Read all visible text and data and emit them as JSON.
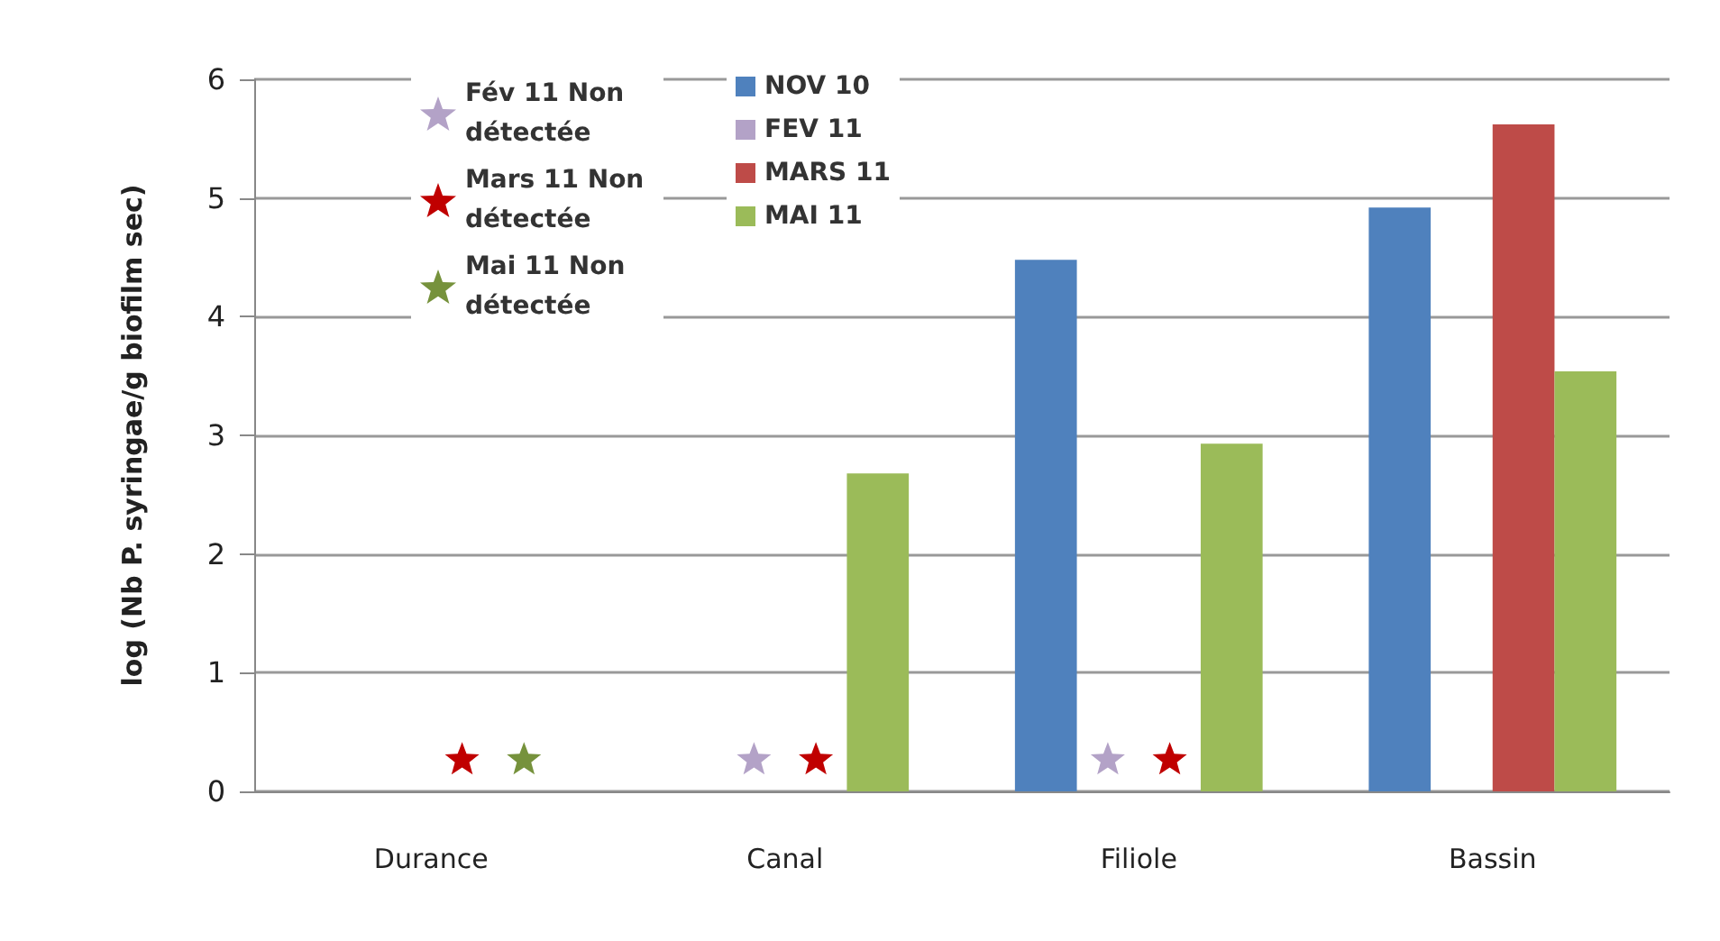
{
  "chart_data": {
    "type": "bar",
    "ylabel": "log (Nb P. syringae/g biofilm sec)",
    "categories": [
      "Durance",
      "Canal",
      "Filiole",
      "Bassin"
    ],
    "series": [
      {
        "name": "NOV 10",
        "color": "#4f81bd",
        "values": [
          null,
          null,
          4.48,
          4.92
        ]
      },
      {
        "name": "FEV 11",
        "color": "#b3a2c7",
        "values": [
          null,
          null,
          null,
          null
        ]
      },
      {
        "name": "MARS 11",
        "color": "#be4b48",
        "values": [
          null,
          null,
          null,
          5.62
        ]
      },
      {
        "name": "MAI 11",
        "color": "#9bbb59",
        "values": [
          null,
          2.68,
          2.93,
          3.54
        ]
      },
      {
        "name": "Fév 11 Non détectée",
        "type": "scatter",
        "color": "#b3a2c7",
        "x": [
          "Canal",
          "Filiole"
        ],
        "values": [
          0.28,
          0.28
        ]
      },
      {
        "name": "Mars 11 Non détectée",
        "type": "scatter",
        "color": "#c00000",
        "x": [
          "Durance",
          "Canal",
          "Filiole"
        ],
        "values": [
          0.28,
          0.28,
          0.28
        ]
      },
      {
        "name": "Mai 11 Non détectée",
        "type": "scatter",
        "color": "#76923c",
        "x": [
          "Durance"
        ],
        "values": [
          0.28
        ]
      }
    ],
    "ylim": [
      0,
      6
    ],
    "yticks": [
      0,
      1,
      2,
      3,
      4,
      5,
      6
    ],
    "grid": "y",
    "legend": "top left",
    "marker": "star"
  }
}
